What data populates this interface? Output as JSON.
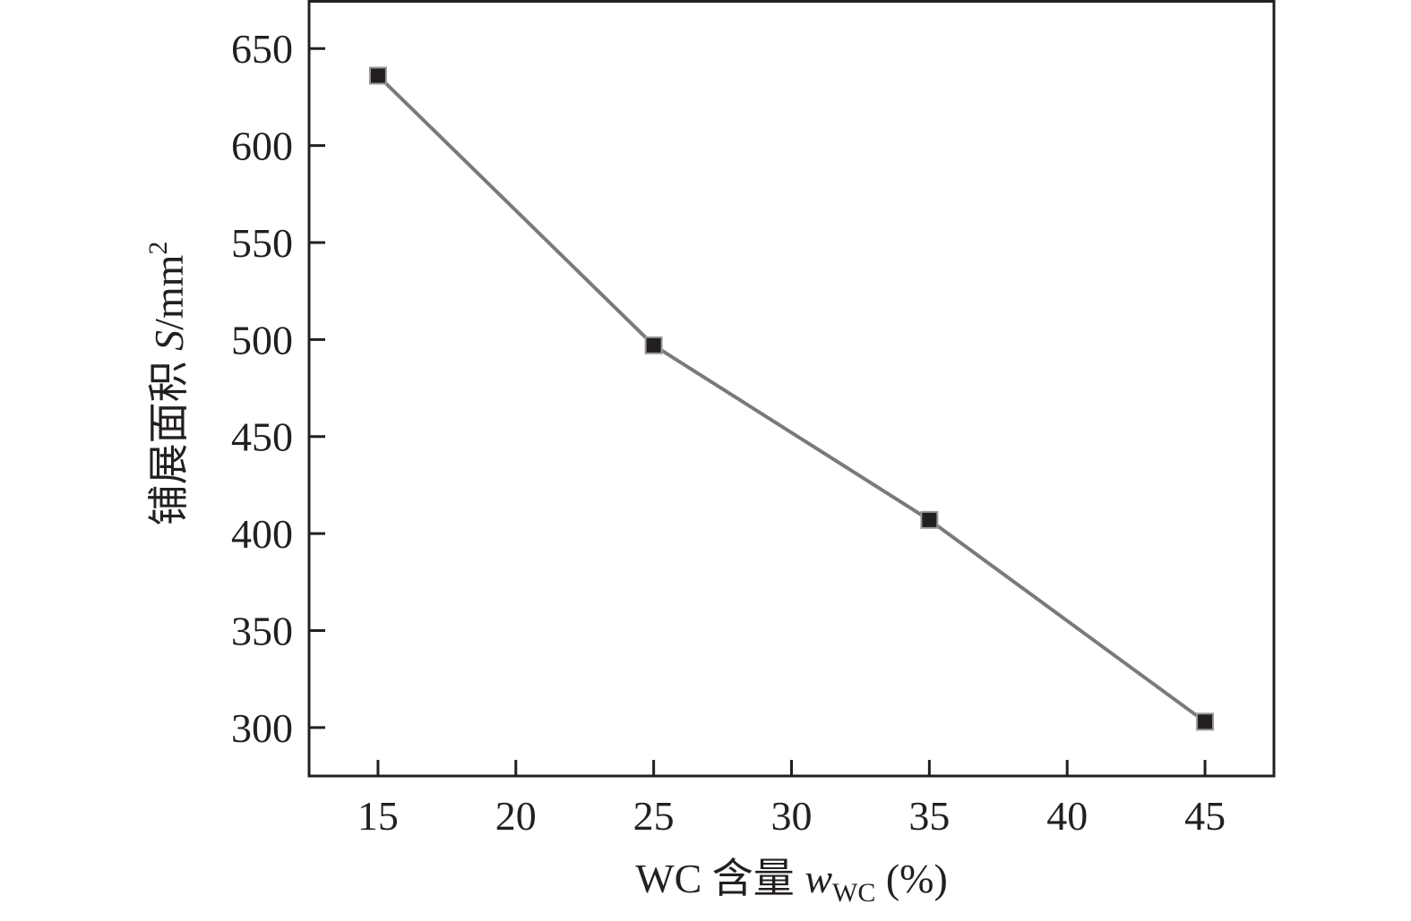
{
  "chart_data": {
    "type": "line",
    "x": [
      15,
      25,
      35,
      45
    ],
    "series": [
      {
        "values": [
          636,
          497,
          407,
          303
        ],
        "color": "#231f20",
        "marker": "square"
      }
    ],
    "xlabel": {
      "main": "WC 含量 ",
      "var": "w",
      "sub": "WC",
      "unit": " (%)"
    },
    "ylabel": {
      "main": "铺展面积 ",
      "var": "S",
      "unit": "/mm",
      "sup": "2"
    },
    "xlim": [
      12.5,
      47.5
    ],
    "ylim": [
      275,
      675
    ],
    "xticks": [
      15,
      20,
      25,
      30,
      35,
      40,
      45
    ],
    "yticks": [
      300,
      350,
      400,
      450,
      500,
      550,
      600,
      650
    ],
    "grid": false,
    "line_color": "#7a7a7a"
  }
}
